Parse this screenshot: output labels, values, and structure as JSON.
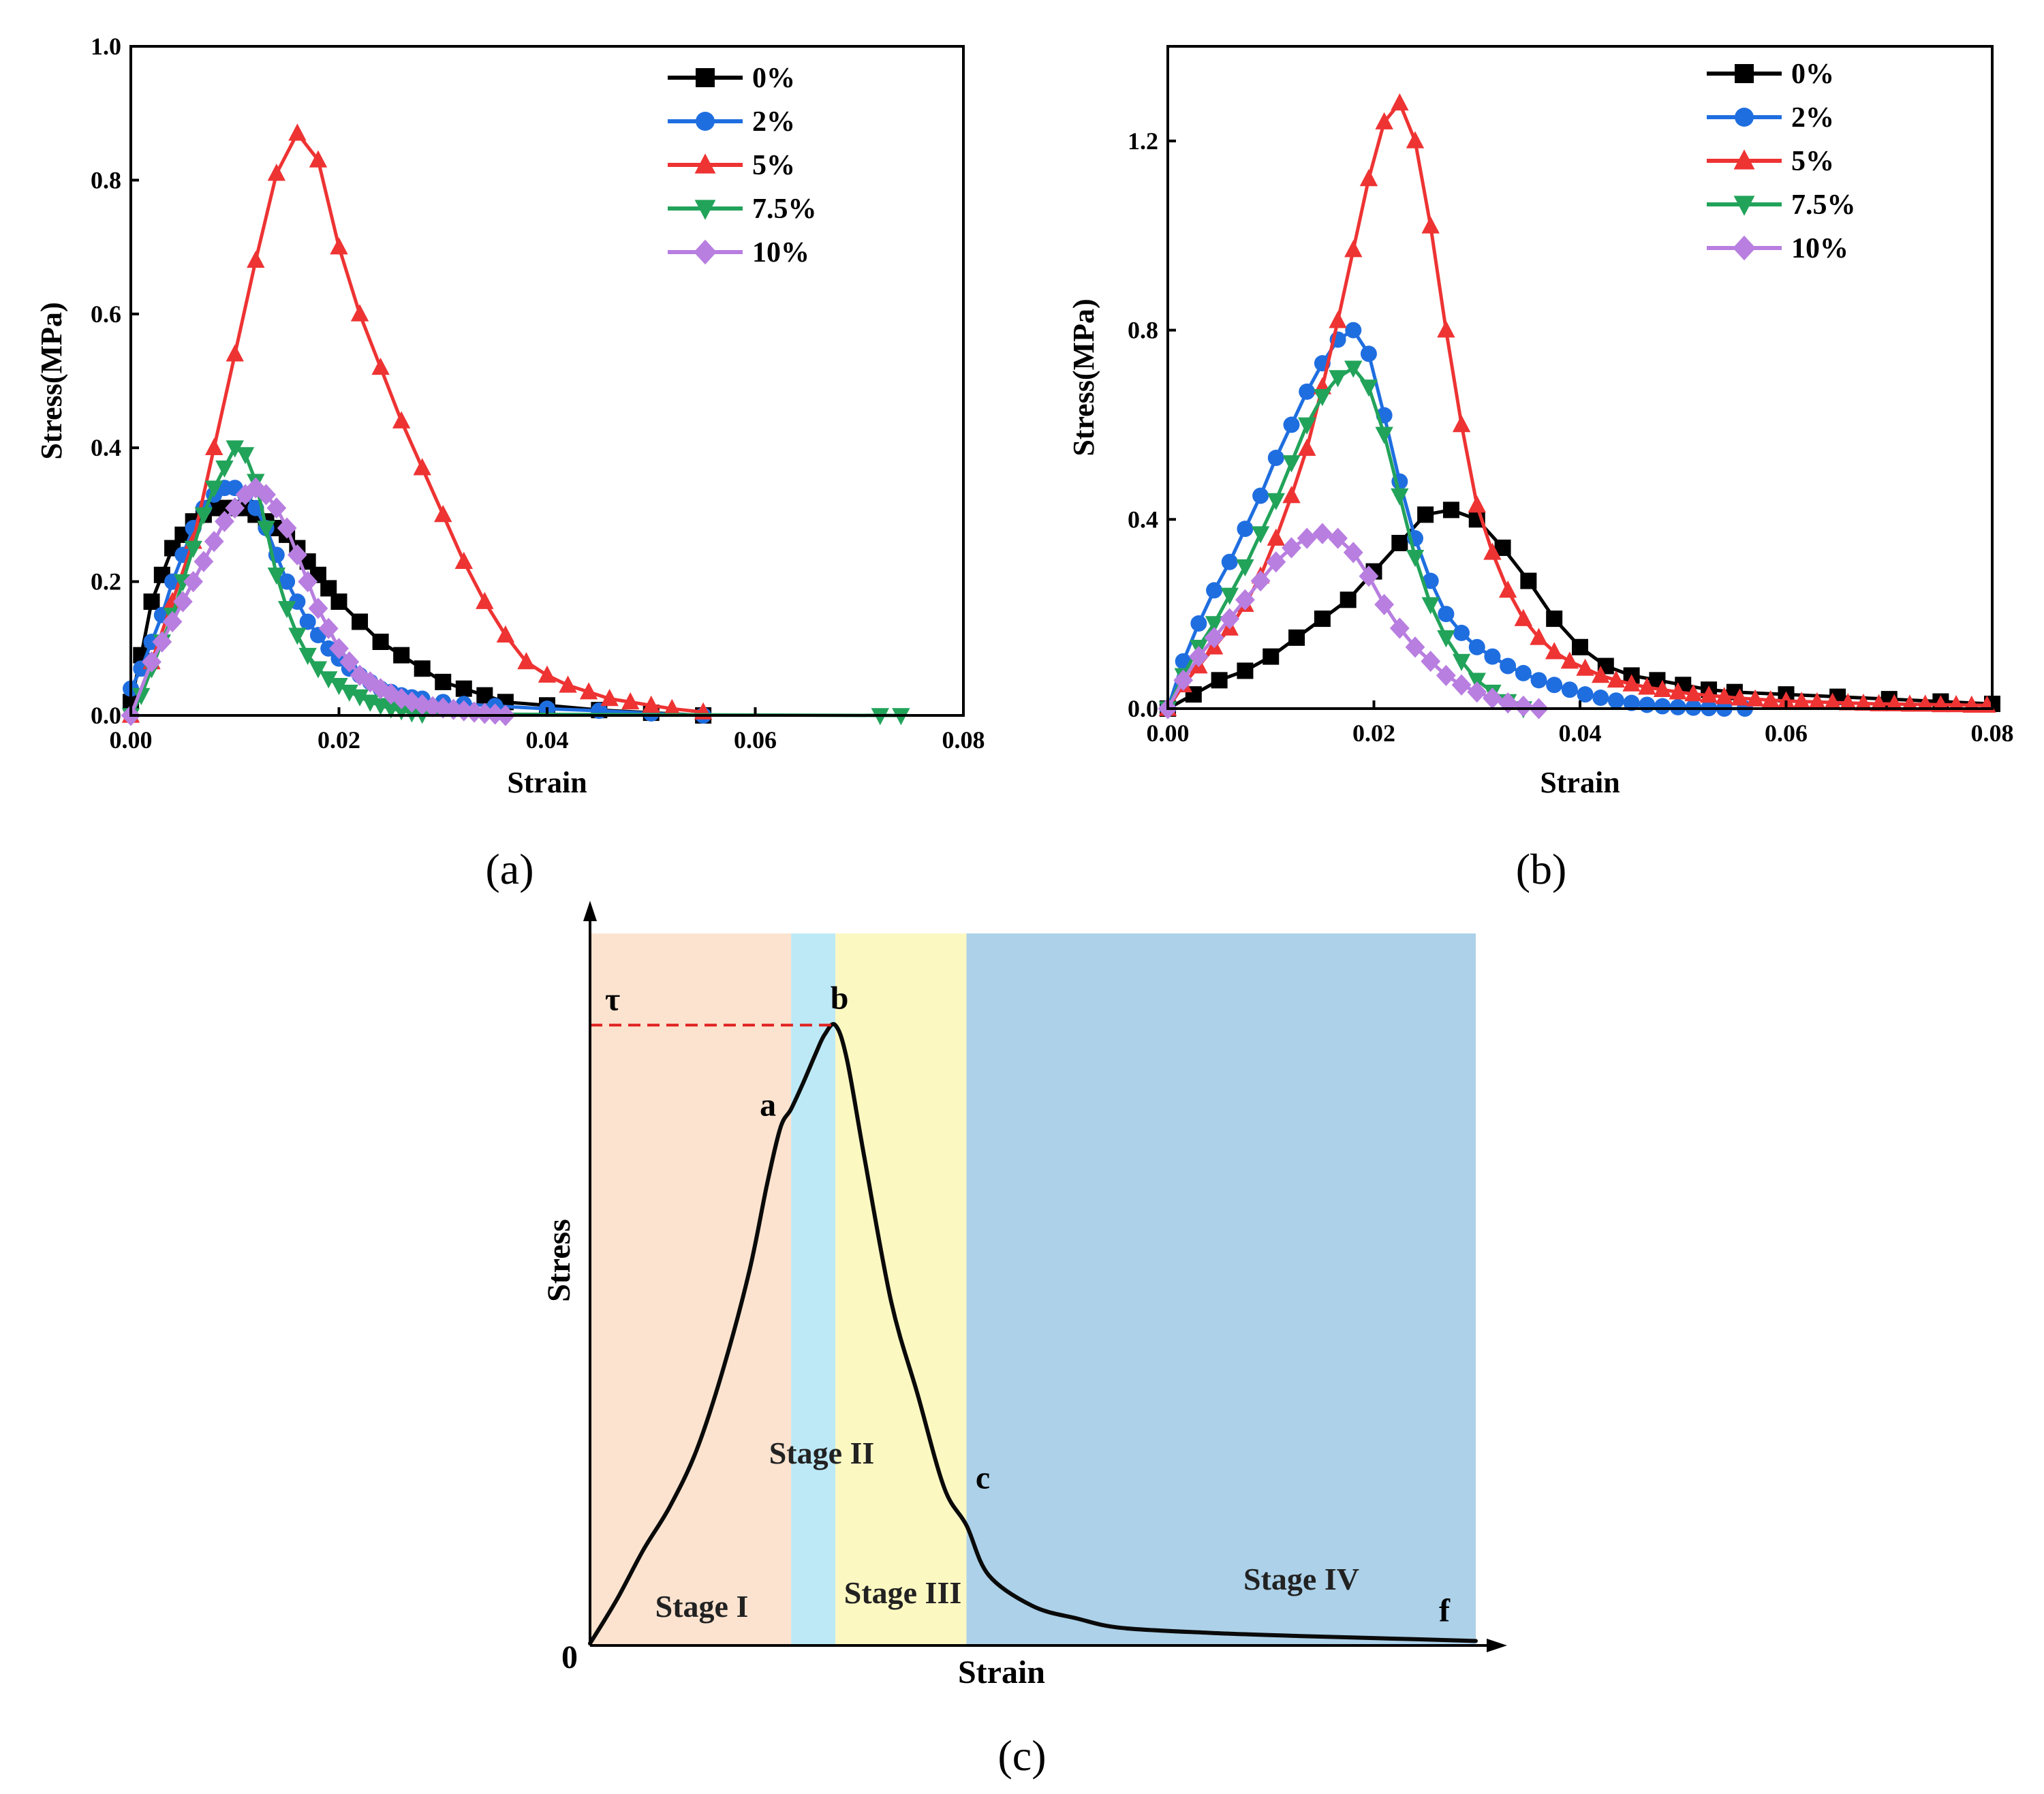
{
  "chart_data": [
    {
      "type": "line",
      "panel": "a",
      "caption": "(a)",
      "xlabel": "Strain",
      "ylabel": "Stress(MPa)",
      "xlim": [
        0,
        0.08
      ],
      "ylim": [
        0,
        1.0
      ],
      "xticks": [
        0,
        0.02,
        0.04,
        0.06,
        0.08
      ],
      "xtick_labels": [
        "0.00",
        "0.02",
        "0.04",
        "0.06",
        "0.08"
      ],
      "yticks": [
        0,
        0.2,
        0.4,
        0.6,
        0.8,
        1.0
      ],
      "ytick_labels": [
        "0.0",
        "0.2",
        "0.4",
        "0.6",
        "0.8",
        "1.0"
      ],
      "legend_position": "top-right",
      "series": [
        {
          "name": "0%",
          "color": "#000000",
          "marker": "square",
          "x": [
            0.0,
            0.001,
            0.002,
            0.003,
            0.004,
            0.005,
            0.006,
            0.007,
            0.008,
            0.009,
            0.01,
            0.011,
            0.012,
            0.013,
            0.014,
            0.015,
            0.016,
            0.017,
            0.018,
            0.019,
            0.02,
            0.022,
            0.024,
            0.026,
            0.028,
            0.03,
            0.032,
            0.034,
            0.036,
            0.04,
            0.045,
            0.05,
            0.055
          ],
          "y": [
            0.02,
            0.09,
            0.17,
            0.21,
            0.25,
            0.27,
            0.29,
            0.3,
            0.31,
            0.31,
            0.31,
            0.31,
            0.3,
            0.29,
            0.28,
            0.27,
            0.25,
            0.23,
            0.21,
            0.19,
            0.17,
            0.14,
            0.11,
            0.09,
            0.07,
            0.05,
            0.04,
            0.03,
            0.02,
            0.015,
            0.008,
            0.004,
            0.0
          ]
        },
        {
          "name": "2%",
          "color": "#1f6ee0",
          "marker": "circle",
          "x": [
            0.0,
            0.001,
            0.002,
            0.003,
            0.004,
            0.005,
            0.006,
            0.007,
            0.008,
            0.009,
            0.01,
            0.011,
            0.012,
            0.013,
            0.014,
            0.015,
            0.016,
            0.017,
            0.018,
            0.019,
            0.02,
            0.021,
            0.022,
            0.023,
            0.024,
            0.025,
            0.026,
            0.027,
            0.028,
            0.03,
            0.032,
            0.035,
            0.04,
            0.045,
            0.05,
            0.055
          ],
          "y": [
            0.04,
            0.07,
            0.11,
            0.15,
            0.2,
            0.24,
            0.28,
            0.31,
            0.33,
            0.34,
            0.34,
            0.33,
            0.31,
            0.28,
            0.24,
            0.2,
            0.17,
            0.14,
            0.12,
            0.1,
            0.085,
            0.07,
            0.06,
            0.05,
            0.04,
            0.035,
            0.03,
            0.027,
            0.025,
            0.02,
            0.017,
            0.014,
            0.01,
            0.007,
            0.003,
            0.0
          ]
        },
        {
          "name": "5%",
          "color": "#ee3333",
          "marker": "triangle-up",
          "x": [
            0.0,
            0.002,
            0.004,
            0.006,
            0.008,
            0.01,
            0.012,
            0.014,
            0.016,
            0.018,
            0.02,
            0.022,
            0.024,
            0.026,
            0.028,
            0.03,
            0.032,
            0.034,
            0.036,
            0.038,
            0.04,
            0.042,
            0.044,
            0.046,
            0.048,
            0.05,
            0.052,
            0.055
          ],
          "y": [
            0.0,
            0.08,
            0.17,
            0.26,
            0.4,
            0.54,
            0.68,
            0.81,
            0.87,
            0.83,
            0.7,
            0.6,
            0.52,
            0.44,
            0.37,
            0.3,
            0.23,
            0.17,
            0.12,
            0.08,
            0.06,
            0.045,
            0.035,
            0.025,
            0.02,
            0.015,
            0.01,
            0.005
          ]
        },
        {
          "name": "7.5%",
          "color": "#22a35a",
          "marker": "triangle-down",
          "x": [
            0.0,
            0.001,
            0.002,
            0.003,
            0.004,
            0.005,
            0.006,
            0.007,
            0.008,
            0.009,
            0.01,
            0.011,
            0.012,
            0.013,
            0.014,
            0.015,
            0.016,
            0.017,
            0.018,
            0.019,
            0.02,
            0.021,
            0.022,
            0.023,
            0.024,
            0.025,
            0.026,
            0.027,
            0.028,
            0.072,
            0.074
          ],
          "y": [
            0.0,
            0.03,
            0.07,
            0.11,
            0.15,
            0.2,
            0.25,
            0.3,
            0.34,
            0.37,
            0.4,
            0.39,
            0.35,
            0.28,
            0.21,
            0.16,
            0.12,
            0.09,
            0.07,
            0.055,
            0.045,
            0.035,
            0.028,
            0.02,
            0.015,
            0.01,
            0.007,
            0.004,
            0.002,
            0.0,
            0.0
          ]
        },
        {
          "name": "10%",
          "color": "#b87ee0",
          "marker": "diamond",
          "x": [
            0.0,
            0.002,
            0.003,
            0.004,
            0.005,
            0.006,
            0.007,
            0.008,
            0.009,
            0.01,
            0.011,
            0.012,
            0.013,
            0.014,
            0.015,
            0.016,
            0.017,
            0.018,
            0.019,
            0.02,
            0.021,
            0.022,
            0.023,
            0.024,
            0.025,
            0.026,
            0.027,
            0.028,
            0.029,
            0.03,
            0.031,
            0.032,
            0.033,
            0.034,
            0.035,
            0.036
          ],
          "y": [
            0.0,
            0.08,
            0.11,
            0.14,
            0.17,
            0.2,
            0.23,
            0.26,
            0.29,
            0.31,
            0.33,
            0.34,
            0.33,
            0.31,
            0.28,
            0.24,
            0.2,
            0.16,
            0.13,
            0.1,
            0.08,
            0.06,
            0.05,
            0.04,
            0.032,
            0.025,
            0.02,
            0.016,
            0.013,
            0.011,
            0.009,
            0.007,
            0.005,
            0.003,
            0.002,
            0.0
          ]
        }
      ]
    },
    {
      "type": "line",
      "panel": "b",
      "caption": "(b)",
      "xlabel": "Strain",
      "ylabel": "Stress(MPa)",
      "xlim": [
        0,
        0.08
      ],
      "ylim": [
        0,
        1.4
      ],
      "xticks": [
        0,
        0.02,
        0.04,
        0.06,
        0.08
      ],
      "xtick_labels": [
        "0.00",
        "0.02",
        "0.04",
        "0.06",
        "0.08"
      ],
      "yticks": [
        0,
        0.4,
        0.8,
        1.2
      ],
      "ytick_labels": [
        "0.0",
        "0.4",
        "0.8",
        "1.2"
      ],
      "legend_position": "top-center",
      "series": [
        {
          "name": "0%",
          "color": "#000000",
          "marker": "square",
          "x": [
            0.0,
            0.0025,
            0.005,
            0.0075,
            0.01,
            0.0125,
            0.015,
            0.0175,
            0.02,
            0.0225,
            0.025,
            0.0275,
            0.03,
            0.0325,
            0.035,
            0.0375,
            0.04,
            0.0425,
            0.045,
            0.0475,
            0.05,
            0.0525,
            0.055,
            0.06,
            0.065,
            0.07,
            0.075,
            0.08
          ],
          "y": [
            0.0,
            0.03,
            0.06,
            0.08,
            0.11,
            0.15,
            0.19,
            0.23,
            0.29,
            0.35,
            0.41,
            0.42,
            0.4,
            0.34,
            0.27,
            0.19,
            0.13,
            0.09,
            0.07,
            0.06,
            0.05,
            0.04,
            0.035,
            0.03,
            0.025,
            0.02,
            0.015,
            0.01
          ]
        },
        {
          "name": "2%",
          "color": "#1f6ee0",
          "marker": "circle",
          "x": [
            0.0,
            0.0015,
            0.003,
            0.0045,
            0.006,
            0.0075,
            0.009,
            0.0105,
            0.012,
            0.0135,
            0.015,
            0.0165,
            0.018,
            0.0195,
            0.021,
            0.0225,
            0.024,
            0.0255,
            0.027,
            0.0285,
            0.03,
            0.0315,
            0.033,
            0.0345,
            0.036,
            0.0375,
            0.039,
            0.0405,
            0.042,
            0.0435,
            0.045,
            0.0465,
            0.048,
            0.0495,
            0.051,
            0.0525,
            0.054,
            0.056
          ],
          "y": [
            0.0,
            0.1,
            0.18,
            0.25,
            0.31,
            0.38,
            0.45,
            0.53,
            0.6,
            0.67,
            0.73,
            0.78,
            0.8,
            0.75,
            0.62,
            0.48,
            0.36,
            0.27,
            0.2,
            0.16,
            0.13,
            0.11,
            0.09,
            0.075,
            0.06,
            0.05,
            0.04,
            0.03,
            0.023,
            0.017,
            0.012,
            0.008,
            0.005,
            0.003,
            0.002,
            0.001,
            0.0,
            0.0
          ]
        },
        {
          "name": "5%",
          "color": "#ee3333",
          "marker": "triangle-up",
          "x": [
            0.0,
            0.0015,
            0.003,
            0.0045,
            0.006,
            0.0075,
            0.009,
            0.0105,
            0.012,
            0.0135,
            0.015,
            0.0165,
            0.018,
            0.0195,
            0.021,
            0.0225,
            0.024,
            0.0255,
            0.027,
            0.0285,
            0.03,
            0.0315,
            0.033,
            0.0345,
            0.036,
            0.0375,
            0.039,
            0.0405,
            0.042,
            0.0435,
            0.045,
            0.0465,
            0.048,
            0.0495,
            0.051,
            0.0525,
            0.054,
            0.0555,
            0.057,
            0.0585,
            0.06,
            0.0615,
            0.063,
            0.0645,
            0.066,
            0.0675,
            0.069,
            0.0705,
            0.072,
            0.0735,
            0.075,
            0.0765,
            0.078,
            0.0795
          ],
          "y": [
            0.0,
            0.05,
            0.09,
            0.13,
            0.17,
            0.22,
            0.28,
            0.36,
            0.45,
            0.55,
            0.68,
            0.82,
            0.97,
            1.12,
            1.24,
            1.28,
            1.2,
            1.02,
            0.8,
            0.6,
            0.43,
            0.33,
            0.25,
            0.19,
            0.15,
            0.12,
            0.1,
            0.085,
            0.07,
            0.06,
            0.052,
            0.045,
            0.04,
            0.035,
            0.031,
            0.028,
            0.025,
            0.022,
            0.02,
            0.018,
            0.016,
            0.015,
            0.014,
            0.013,
            0.012,
            0.011,
            0.01,
            0.01,
            0.009,
            0.009,
            0.008,
            0.008,
            0.007,
            0.007
          ]
        },
        {
          "name": "7.5%",
          "color": "#22a35a",
          "marker": "triangle-down",
          "x": [
            0.0,
            0.0015,
            0.003,
            0.0045,
            0.006,
            0.0075,
            0.009,
            0.0105,
            0.012,
            0.0135,
            0.015,
            0.0165,
            0.018,
            0.0195,
            0.021,
            0.0225,
            0.024,
            0.0255,
            0.027,
            0.0285,
            0.03,
            0.0315,
            0.033,
            0.0345
          ],
          "y": [
            0.0,
            0.07,
            0.13,
            0.18,
            0.24,
            0.3,
            0.37,
            0.44,
            0.52,
            0.6,
            0.66,
            0.7,
            0.72,
            0.68,
            0.58,
            0.45,
            0.32,
            0.22,
            0.15,
            0.1,
            0.06,
            0.035,
            0.015,
            0.0
          ]
        },
        {
          "name": "10%",
          "color": "#b87ee0",
          "marker": "diamond",
          "x": [
            0.0,
            0.0015,
            0.003,
            0.0045,
            0.006,
            0.0075,
            0.009,
            0.0105,
            0.012,
            0.0135,
            0.015,
            0.0165,
            0.018,
            0.0195,
            0.021,
            0.0225,
            0.024,
            0.0255,
            0.027,
            0.0285,
            0.03,
            0.0315,
            0.033,
            0.0345,
            0.036
          ],
          "y": [
            0.0,
            0.06,
            0.11,
            0.15,
            0.19,
            0.23,
            0.27,
            0.31,
            0.34,
            0.36,
            0.37,
            0.36,
            0.33,
            0.28,
            0.22,
            0.17,
            0.13,
            0.1,
            0.07,
            0.05,
            0.035,
            0.022,
            0.012,
            0.005,
            0.0
          ]
        }
      ]
    },
    {
      "type": "area",
      "panel": "c",
      "caption": "(c)",
      "xlabel": "Strain",
      "ylabel": "Stress",
      "origin_label": "0",
      "peak_label": "τ",
      "point_labels": {
        "a": "a",
        "b": "b",
        "c": "c",
        "f": "f"
      },
      "stages": [
        {
          "label": "Stage I",
          "from": 0.0,
          "to": 0.227,
          "color": "#fbe3cf"
        },
        {
          "label": "Stage II",
          "from": 0.227,
          "to": 0.277,
          "color": "#bde9f7"
        },
        {
          "label": "Stage III",
          "from": 0.277,
          "to": 0.425,
          "color": "#fcf8c2"
        },
        {
          "label": "Stage IV",
          "from": 0.425,
          "to": 1.0,
          "color": "#acd1e9"
        }
      ],
      "curve_color": "#0a0a0a",
      "tau_line_color": "#e02020",
      "curve": {
        "x": [
          0.0,
          0.03,
          0.06,
          0.09,
          0.12,
          0.15,
          0.18,
          0.2,
          0.215,
          0.227,
          0.24,
          0.255,
          0.265,
          0.277,
          0.29,
          0.31,
          0.34,
          0.37,
          0.4,
          0.425,
          0.45,
          0.5,
          0.55,
          0.6,
          0.7,
          0.8,
          0.9,
          1.0
        ],
        "y": [
          0.0,
          0.07,
          0.15,
          0.22,
          0.31,
          0.44,
          0.6,
          0.74,
          0.83,
          0.86,
          0.9,
          0.95,
          0.98,
          0.995,
          0.94,
          0.78,
          0.55,
          0.4,
          0.25,
          0.19,
          0.11,
          0.06,
          0.04,
          0.025,
          0.017,
          0.012,
          0.008,
          0.004
        ]
      },
      "markers": {
        "a": [
          0.227,
          0.86
        ],
        "b": [
          0.277,
          0.995
        ],
        "c": [
          0.425,
          0.19
        ],
        "f": [
          0.98,
          0.005
        ]
      }
    }
  ]
}
